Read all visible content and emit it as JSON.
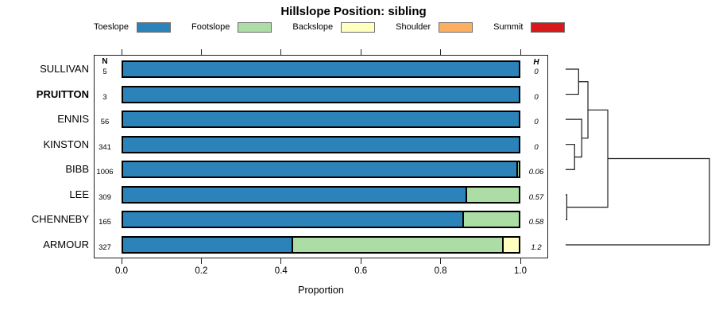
{
  "title": "Hillslope Position: sibling",
  "legend": [
    {
      "label": "Toeslope",
      "color": "#2B83BA"
    },
    {
      "label": "Footslope",
      "color": "#ABDDA4"
    },
    {
      "label": "Backslope",
      "color": "#FFFFBF"
    },
    {
      "label": "Shoulder",
      "color": "#FDAE61"
    },
    {
      "label": "Summit",
      "color": "#D7191C"
    }
  ],
  "columns": {
    "n_header": "N",
    "h_header": "H"
  },
  "axis": {
    "label": "Proportion",
    "tick_values": [
      0,
      0.2,
      0.4,
      0.6,
      0.8,
      1.0
    ],
    "tick_labels": [
      "0.0",
      "0.2",
      "0.4",
      "0.6",
      "0.8",
      "1.0"
    ]
  },
  "chart_data": {
    "type": "bar",
    "stacked": true,
    "orientation": "horizontal",
    "xlabel": "Proportion",
    "xlim": [
      0,
      1
    ],
    "categories": [
      "SULLIVAN",
      "PRUITTON",
      "ENNIS",
      "KINSTON",
      "BIBB",
      "LEE",
      "CHENNEBY",
      "ARMOUR"
    ],
    "emphasized_category": "PRUITTON",
    "n_values": [
      "5",
      "3",
      "56",
      "341",
      "1006",
      "309",
      "165",
      "327"
    ],
    "h_values": [
      "0",
      "0",
      "0",
      "0",
      "0.06",
      "0.57",
      "0.58",
      "1.2"
    ],
    "series": [
      {
        "name": "Toeslope",
        "color": "#2B83BA",
        "values": [
          1,
          1,
          1,
          1,
          0.993,
          0.865,
          0.858,
          0.426
        ]
      },
      {
        "name": "Footslope",
        "color": "#ABDDA4",
        "values": [
          0,
          0,
          0,
          0,
          0.007,
          0.135,
          0.142,
          0.532
        ]
      },
      {
        "name": "Backslope",
        "color": "#FFFFBF",
        "values": [
          0,
          0,
          0,
          0,
          0,
          0,
          0,
          0.042
        ]
      },
      {
        "name": "Shoulder",
        "color": "#FDAE61",
        "values": [
          0,
          0,
          0,
          0,
          0,
          0,
          0,
          0
        ]
      },
      {
        "name": "Summit",
        "color": "#D7191C",
        "values": [
          0,
          0,
          0,
          0,
          0,
          0,
          0,
          0
        ]
      }
    ],
    "dendrogram": {
      "leaf_order": [
        "SULLIVAN",
        "PRUITTON",
        "ENNIS",
        "KINSTON",
        "BIBB",
        "LEE",
        "CHENNEBY",
        "ARMOUR"
      ],
      "merges": [
        {
          "id": "m1",
          "children": [
            "LEE",
            "CHENNEBY"
          ],
          "height": 0.008
        },
        {
          "id": "m2",
          "children": [
            "KINSTON",
            "BIBB"
          ],
          "height": 0.062
        },
        {
          "id": "m3",
          "children": [
            "SULLIVAN",
            "PRUITTON"
          ],
          "height": 0.09
        },
        {
          "id": "m4",
          "children": [
            "ENNIS",
            "m2"
          ],
          "height": 0.112
        },
        {
          "id": "m5",
          "children": [
            "m3",
            "m4"
          ],
          "height": 0.155
        },
        {
          "id": "m6",
          "children": [
            "m5",
            "m1"
          ],
          "height": 0.293
        },
        {
          "id": "m7",
          "children": [
            "m6",
            "ARMOUR"
          ],
          "height": 1.0
        }
      ]
    }
  }
}
